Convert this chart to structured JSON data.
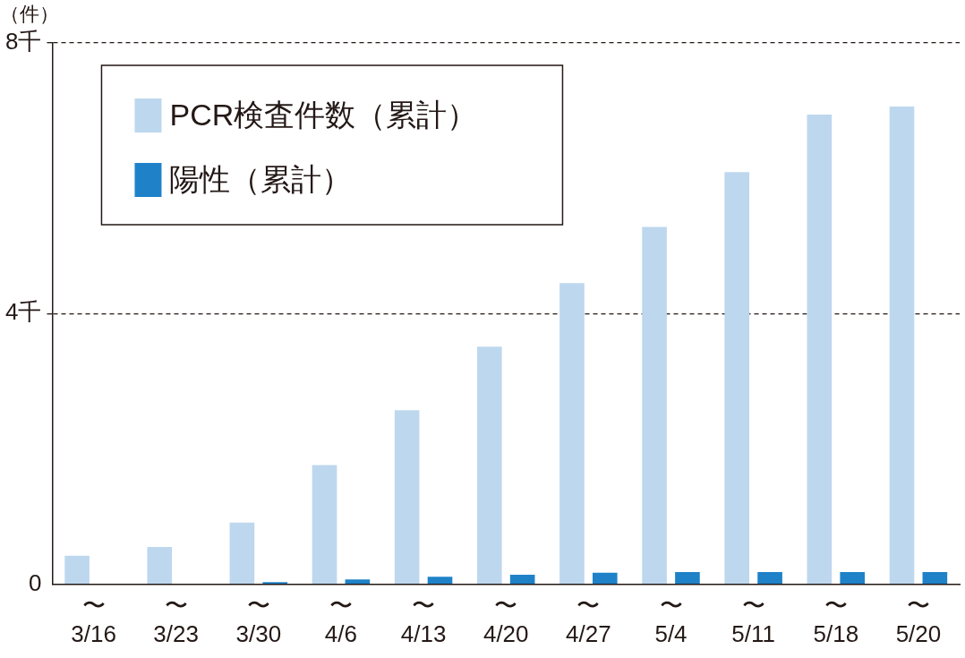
{
  "chart_data": {
    "type": "bar",
    "ylabel": "（件）",
    "categories": [
      "〜\n3/16",
      "〜\n3/23",
      "〜\n3/30",
      "〜\n4/6",
      "〜\n4/13",
      "〜\n4/20",
      "〜\n4/27",
      "〜\n5/4",
      "〜\n5/11",
      "〜\n5/18",
      "〜\n5/20"
    ],
    "series": [
      {
        "name": "PCR検査件数（累計）",
        "color": "#bdd7ee",
        "values": [
          0.42,
          0.55,
          0.91,
          1.76,
          2.57,
          3.51,
          4.45,
          5.28,
          6.09,
          6.94,
          7.06
        ]
      },
      {
        "name": "陽性（累計）",
        "color": "#1f82c8",
        "values": [
          0,
          0,
          0.03,
          0.07,
          0.11,
          0.14,
          0.17,
          0.18,
          0.18,
          0.18,
          0.18
        ]
      }
    ],
    "ylim": [
      0,
      8
    ],
    "yticks": [
      0,
      {
        "value": 4,
        "label": "4千"
      },
      {
        "value": 8,
        "label": "8千"
      }
    ],
    "grid": "y",
    "line_style": "dashed",
    "legend": "top left"
  }
}
